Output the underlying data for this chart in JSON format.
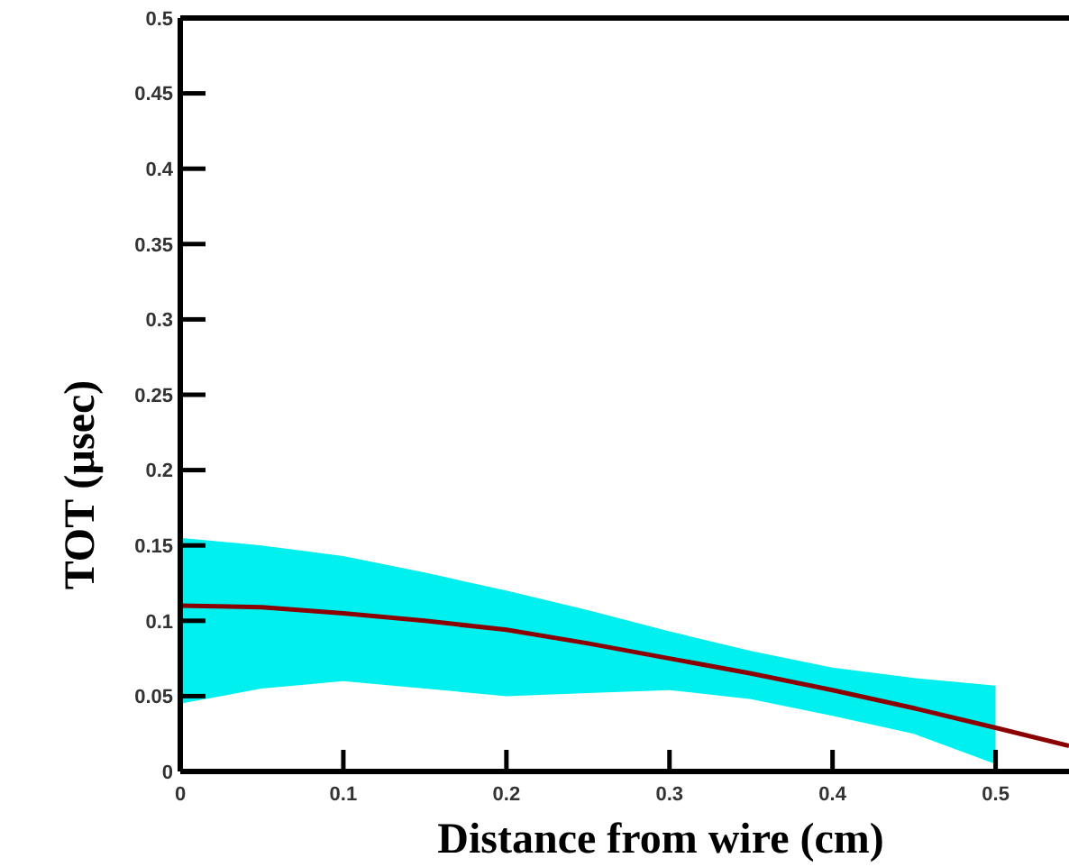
{
  "chart_data": {
    "type": "line",
    "xlabel": "Distance from wire (cm)",
    "ylabel": "TOT (µsec)",
    "x": [
      0,
      0.05,
      0.1,
      0.15,
      0.2,
      0.25,
      0.3,
      0.35,
      0.4,
      0.45,
      0.5,
      0.545
    ],
    "series": [
      {
        "color": "#8b0000",
        "values": [
          0.11,
          0.109,
          0.105,
          0.1,
          0.094,
          0.085,
          0.075,
          0.065,
          0.054,
          0.042,
          0.029,
          0.017
        ],
        "lower": [
          0.045,
          0.055,
          0.06,
          0.055,
          0.05,
          0.052,
          0.054,
          0.048,
          0.037,
          0.025,
          0.005,
          null
        ],
        "upper": [
          0.155,
          0.15,
          0.143,
          0.132,
          0.12,
          0.107,
          0.093,
          0.08,
          0.069,
          0.062,
          0.057,
          null
        ]
      }
    ],
    "xlim": [
      0,
      0.545
    ],
    "ylim": [
      0,
      0.5
    ],
    "xticks": [
      0,
      0.1,
      0.2,
      0.3,
      0.4,
      0.5
    ],
    "yticks": [
      0,
      0.05,
      0.1,
      0.15,
      0.2,
      0.25,
      0.3,
      0.35,
      0.4,
      0.45,
      0.5
    ],
    "grid": false
  }
}
